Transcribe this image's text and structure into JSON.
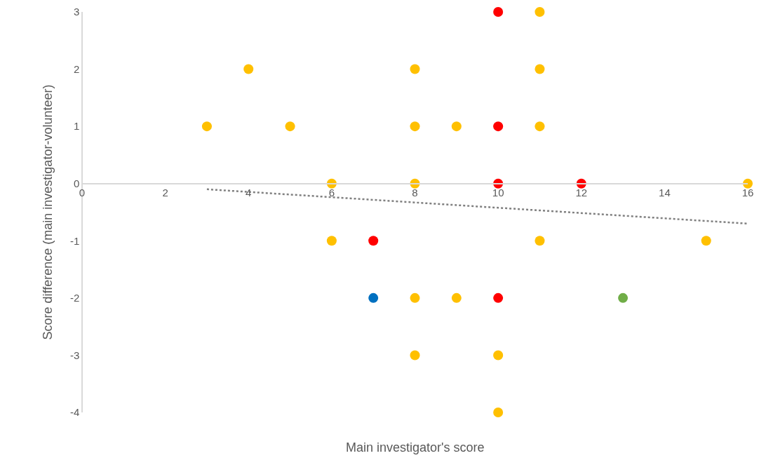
{
  "chart_data": {
    "type": "scatter",
    "xlabel": "Main investigator's score",
    "ylabel": "Score difference (main investigator-volunteer)",
    "xlim": [
      0,
      16
    ],
    "xticks": [
      0,
      2,
      4,
      6,
      8,
      10,
      12,
      14,
      16
    ],
    "ylim": [
      -4,
      3
    ],
    "yticks": [
      -4,
      -3,
      -2,
      -1,
      0,
      1,
      2,
      3
    ],
    "grid": false,
    "marker": "circle",
    "series": [
      {
        "color": "#ffc000",
        "x": [
          3,
          4,
          5,
          6,
          6,
          8,
          8,
          8,
          8,
          8,
          9,
          9,
          10,
          10,
          11,
          11,
          11,
          11,
          15,
          16
        ],
        "values": [
          1,
          2,
          1,
          0,
          -1,
          2,
          1,
          0,
          -2,
          -3,
          1,
          -2,
          -3,
          -4,
          3,
          2,
          1,
          -1,
          -1,
          0
        ]
      },
      {
        "color": "#ff0000",
        "x": [
          10,
          10,
          10,
          12,
          7,
          10
        ],
        "values": [
          3,
          1,
          0,
          0,
          -1,
          -2
        ]
      },
      {
        "color": "#0070c0",
        "x": [
          7
        ],
        "values": [
          -2
        ]
      },
      {
        "color": "#70ad47",
        "x": [
          13
        ],
        "values": [
          -2
        ]
      },
      {
        "type": "line",
        "color": "#808080",
        "line_style": "dotted",
        "marker": "none",
        "x": [
          3,
          16
        ],
        "values": [
          -0.1,
          -0.7
        ]
      }
    ]
  }
}
